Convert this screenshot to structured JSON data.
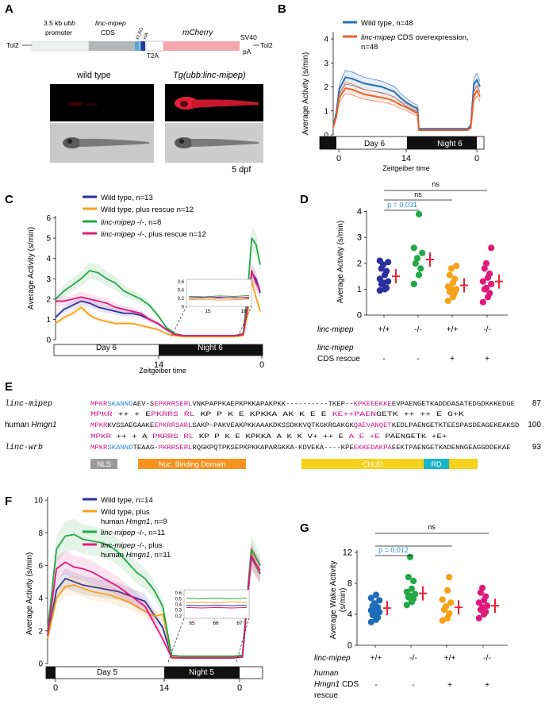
{
  "panels": {
    "A": {
      "letter": "A",
      "construct": {
        "tol2_left": "Tol2",
        "promoter_line1": "3.5 kb",
        "promoter_ubb": "ubb",
        "promoter_line2": "promoter",
        "cds_gene": "linc-mipep",
        "cds_label": "CDS",
        "flag": "FLAG",
        "ha": "HA",
        "t2a": "T2A",
        "mcherry": "mCherry",
        "sv40": "SV40",
        "pa": "pA",
        "tol2_right": "Tol2"
      },
      "fish": {
        "wild_type": "wild type",
        "tg": "Tg(ubb:linc-mipep)",
        "dpf": "5 dpf"
      }
    },
    "B": {
      "letter": "B",
      "ylabel": "Average Activity (s/min)",
      "xlabel": "Zeitgeiber time",
      "yticks": [
        "0",
        "1",
        "2",
        "3",
        "4"
      ],
      "xticks": [
        "0",
        "14",
        "0"
      ],
      "day_label": "Day 6",
      "night_label": "Night 6",
      "legend": [
        {
          "name": "Wild type, n=48",
          "color": "#2a6eb5"
        },
        {
          "name_italic": "linc-mipep",
          "name_rest": " CDS overexpression,",
          "name_line2": "n=48",
          "color": "#e8642c"
        }
      ]
    },
    "C": {
      "letter": "C",
      "ylabel": "Average Activity (s/min)",
      "xlabel": "Zeitgeiber time",
      "yticks": [
        "0",
        "1",
        "2",
        "3",
        "4",
        "5",
        "6"
      ],
      "xticks": [
        "14",
        "0"
      ],
      "day_label": "Day 6",
      "night_label": "Night 6",
      "inset_yticks": [
        "0",
        "0.2",
        "0.4",
        "0.6"
      ],
      "inset_xticks": [
        "15",
        "16"
      ],
      "legend": [
        {
          "name": "Wild type, n=13",
          "color": "#2b2f9e"
        },
        {
          "name": "Wild type, plus rescue  n=12",
          "color": "#f7a11a"
        },
        {
          "name_italic": "linc-mipep",
          "name_rest": " -/-, n=8",
          "color": "#22a846"
        },
        {
          "name_italic": "linc-mipep",
          "name_rest": " -/-, plus rescue n=12",
          "color": "#e0197d"
        }
      ]
    },
    "D": {
      "letter": "D",
      "ylabel": "Average Activity (s/min)",
      "yticks": [
        "0",
        "1",
        "2",
        "3",
        "4"
      ],
      "sig": [
        {
          "label": "ns"
        },
        {
          "label": "ns"
        },
        {
          "label": "p = 0.031"
        }
      ],
      "row1_label": "linc-mipep",
      "row1_values": [
        "+/+",
        "-/-",
        "+/+",
        "-/-"
      ],
      "row2_label_1": "linc-mipep",
      "row2_label_2": "CDS rescue",
      "row2_values": [
        "-",
        "-",
        "+",
        "+"
      ]
    },
    "E": {
      "letter": "E",
      "rows": [
        {
          "name": "linc-mipep",
          "seq": "MPKRSKANNDAEV-SEPKRRSERLVNKPAPPKAEPKPKKAPAKPKK----------TKEP--KPKEEEKKEEVPAENGETKADDDASATEDGDKKKEDGE",
          "end": "87"
        },
        {
          "name": "",
          "seq": "MPKR  ++ +    EPKRRS RL  KP P K E KPKKA AK K            E    E KE++PAENGETK ++  ++ E G+K",
          "end": ""
        },
        {
          "name": "human Hmgn1",
          "seq": "MPKRKVSSAEGAAKEEPKRRSARLSAKP-PAKVEAKPKKAAAKDKSSDKKVQTKGKRGAKGKQAEVANQETKEDLPAENGETKTEESPASDEAGEKEAKSD",
          "end": "100"
        },
        {
          "name": "",
          "seq": "MPKR  ++ +  A   PKRRS RL  KP  P K E KPKKA A K  K V+       ++ E A  E +E  PAENGETK +E+",
          "end": ""
        },
        {
          "name": "linc-wrb",
          "seq": "MPKRSKANNDTEAAG-PKRRSERLRQGKPQTPKSEPKPKKAPARGKKA-KDVEKA----KPEEKKEDAKPAEEKTPAENGETKADENNGEAGGDDEKAE",
          "end": "93"
        }
      ],
      "domains": {
        "nls": "NLS",
        "nbd": "Nuc. Binding Domain",
        "chud": "CHUD",
        "rd": "RD"
      }
    },
    "F": {
      "letter": "F",
      "ylabel": "Average Activity (s/min)",
      "yticks": [
        "0",
        "2",
        "4",
        "6",
        "8",
        "10"
      ],
      "xticks": [
        "0",
        "14",
        "0"
      ],
      "day_label": "Day 5",
      "night_label": "Night 5",
      "inset_yticks": [
        "0.2",
        "0.3",
        "0.4",
        "0.5",
        "0.6"
      ],
      "inset_xticks": [
        "65",
        "66",
        "67"
      ],
      "legend": [
        {
          "name": "Wild type, n=14",
          "color": "#2b2f9e"
        },
        {
          "name": "Wild type, plus",
          "name_line2_pre": "human ",
          "name_line2_italic": "Hmgn1",
          "name_line2_post": ", n=9",
          "color": "#f7a11a"
        },
        {
          "name_italic": "linc-mipep",
          "name_rest": " -/-, n=11",
          "color": "#22a846"
        },
        {
          "name_italic": "linc-mipep",
          "name_rest": " -/-, plus",
          "name_line2_pre": "human ",
          "name_line2_italic": "Hmgn1",
          "name_line2_post": ", n=11",
          "color": "#e0197d"
        }
      ]
    },
    "G": {
      "letter": "G",
      "ylabel_1": "Average Wake Activity",
      "ylabel_2": "(s/min)",
      "yticks": [
        "0",
        "4",
        "8",
        "12"
      ],
      "sig": [
        {
          "label": "ns"
        },
        {
          "label": "p = 0.012"
        }
      ],
      "row1_label": "linc-mipep",
      "row1_values": [
        "+/+",
        "-/-",
        "+/+",
        "-/-"
      ],
      "row2_label_1": "human",
      "row2_label_2": "Hmgn1",
      "row2_label_2b": " CDS",
      "row2_label_3": "rescue",
      "row2_values": [
        "-",
        "-",
        "+",
        "+"
      ]
    }
  },
  "colors": {
    "wt": "#2b2f9e",
    "wt_rescue": "#f7a11a",
    "mut": "#22a846",
    "mut_rescue": "#e0197d",
    "wt_blue": "#2a6eb5",
    "oe_orange": "#e8642c",
    "mean": "#e8233a",
    "seq_mag": "#d4148c",
    "seq_blue": "#2a8ad4"
  },
  "chart_data": [
    {
      "panel": "B",
      "type": "line",
      "xlabel": "Zeitgeiber time",
      "ylabel": "Average Activity (s/min)",
      "ylim": [
        0,
        4.3
      ],
      "x": [
        0,
        0.5,
        1,
        2,
        3,
        4,
        5,
        6,
        7,
        8,
        9,
        10,
        11,
        12,
        13,
        13.8,
        14,
        15,
        16,
        17,
        18,
        19,
        20,
        21,
        22,
        22.5,
        23,
        23.5,
        24
      ],
      "series": [
        {
          "name": "Wild type, n=48",
          "values": [
            0.35,
            0.9,
            1.9,
            2.4,
            2.35,
            2.25,
            2.15,
            2.1,
            2.05,
            2.0,
            1.9,
            1.8,
            1.55,
            1.35,
            1.2,
            1.1,
            0.25,
            0.25,
            0.25,
            0.25,
            0.25,
            0.25,
            0.25,
            0.25,
            0.25,
            0.4,
            2.1,
            2.3,
            2.0
          ]
        },
        {
          "name": "linc-mipep CDS overexpression, n=48",
          "values": [
            0.3,
            0.75,
            1.55,
            1.95,
            1.9,
            1.8,
            1.7,
            1.65,
            1.6,
            1.55,
            1.5,
            1.4,
            1.25,
            1.15,
            1.0,
            0.9,
            0.2,
            0.2,
            0.2,
            0.2,
            0.2,
            0.2,
            0.2,
            0.2,
            0.2,
            0.3,
            1.6,
            1.85,
            1.6
          ]
        }
      ]
    },
    {
      "panel": "C",
      "type": "line",
      "xlabel": "Zeitgeiber time",
      "ylabel": "Average Activity (s/min)",
      "ylim": [
        0,
        6
      ],
      "x": [
        0,
        1,
        2,
        3,
        4,
        5,
        6,
        7,
        8,
        9,
        10,
        11,
        12,
        13,
        14,
        15,
        16,
        17,
        18,
        19,
        20,
        21,
        22,
        22.5,
        23,
        23.5,
        24
      ],
      "series": [
        {
          "name": "Wild type, n=13",
          "values": [
            1.1,
            1.5,
            1.7,
            1.9,
            1.8,
            1.6,
            1.5,
            1.4,
            1.3,
            1.3,
            1.2,
            1.0,
            0.8,
            0.5,
            0.25,
            0.2,
            0.2,
            0.2,
            0.2,
            0.2,
            0.2,
            0.2,
            0.25,
            1.5,
            3.3,
            3.0,
            2.3
          ]
        },
        {
          "name": "Wild type, plus rescue  n=12",
          "values": [
            0.8,
            1.1,
            1.3,
            1.6,
            1.2,
            1.0,
            0.9,
            0.8,
            0.8,
            0.8,
            0.7,
            0.6,
            0.5,
            0.3,
            0.2,
            0.15,
            0.15,
            0.15,
            0.15,
            0.15,
            0.15,
            0.15,
            0.2,
            1.2,
            2.9,
            2.1,
            1.4
          ]
        },
        {
          "name": "linc-mipep -/-, n=8",
          "values": [
            2.0,
            2.4,
            2.7,
            3.0,
            3.4,
            3.3,
            3.0,
            2.8,
            2.4,
            2.2,
            2.0,
            1.7,
            1.2,
            0.6,
            0.3,
            0.2,
            0.2,
            0.2,
            0.2,
            0.2,
            0.2,
            0.2,
            0.3,
            2.2,
            5.0,
            4.7,
            3.7
          ]
        },
        {
          "name": "linc-mipep -/-, plus rescue n=12",
          "values": [
            1.9,
            1.9,
            2.0,
            2.1,
            2.0,
            1.9,
            1.8,
            1.6,
            1.5,
            1.4,
            1.3,
            1.0,
            0.8,
            0.5,
            0.25,
            0.2,
            0.2,
            0.2,
            0.2,
            0.2,
            0.2,
            0.2,
            0.25,
            1.6,
            3.4,
            2.8,
            2.4
          ]
        }
      ]
    },
    {
      "panel": "D",
      "type": "scatter",
      "ylabel": "Average Activity (s/min)",
      "ylim": [
        0,
        4
      ],
      "groups": [
        {
          "genotype": "+/+",
          "rescue": "-",
          "color": "#2b2f9e",
          "mean": 1.5,
          "values": [
            0.95,
            1.05,
            1.2,
            1.3,
            1.4,
            1.55,
            1.7,
            1.8,
            1.95,
            2.05,
            2.1,
            1.0,
            1.25
          ]
        },
        {
          "genotype": "-/-",
          "rescue": "-",
          "color": "#22a846",
          "mean": 2.15,
          "values": [
            1.2,
            1.55,
            1.8,
            2.0,
            2.2,
            2.4,
            2.6,
            3.9
          ]
        },
        {
          "genotype": "+/+",
          "rescue": "+",
          "color": "#f7a11a",
          "mean": 1.15,
          "values": [
            0.55,
            0.7,
            0.85,
            0.9,
            1.0,
            1.0,
            1.1,
            1.25,
            1.4,
            1.55,
            1.8,
            1.9
          ]
        },
        {
          "genotype": "-/-",
          "rescue": "+",
          "color": "#e0197d",
          "mean": 1.3,
          "values": [
            0.5,
            0.7,
            0.85,
            1.0,
            1.05,
            1.2,
            1.3,
            1.45,
            1.6,
            1.8,
            2.0,
            2.6
          ]
        }
      ]
    },
    {
      "panel": "F",
      "type": "line",
      "ylabel": "Average Activity (s/min)",
      "ylim": [
        0,
        10
      ],
      "x": [
        0,
        1,
        2,
        3,
        4,
        5,
        6,
        7,
        8,
        9,
        10,
        11,
        12,
        13,
        14,
        15,
        16,
        17,
        18,
        19,
        20,
        21,
        22,
        22.5,
        23,
        23.5,
        24
      ],
      "series": [
        {
          "name": "Wild type, n=14",
          "values": [
            1.5,
            4.5,
            5.2,
            5.0,
            4.8,
            4.7,
            4.6,
            4.5,
            4.4,
            4.2,
            4.0,
            3.8,
            3.0,
            2.2,
            0.4,
            0.35,
            0.35,
            0.35,
            0.35,
            0.35,
            0.35,
            0.35,
            0.4,
            3.5,
            6.5,
            6.0,
            5.5
          ]
        },
        {
          "name": "Wild type, plus human Hmgn1, n=9",
          "values": [
            1.5,
            4.0,
            4.7,
            4.8,
            4.6,
            4.4,
            4.3,
            4.2,
            4.0,
            3.8,
            3.5,
            3.2,
            2.9,
            3.0,
            0.4,
            0.4,
            0.4,
            0.4,
            0.4,
            0.4,
            0.4,
            0.4,
            0.45,
            3.5,
            6.8,
            6.1,
            5.6
          ]
        },
        {
          "name": "linc-mipep -/-, n=11",
          "values": [
            2.0,
            7.0,
            7.8,
            7.9,
            7.6,
            7.5,
            7.4,
            7.2,
            6.8,
            6.2,
            5.6,
            5.2,
            4.5,
            3.5,
            0.5,
            0.45,
            0.45,
            0.45,
            0.45,
            0.45,
            0.45,
            0.45,
            0.5,
            4.0,
            7.0,
            6.5,
            6.0
          ]
        },
        {
          "name": "linc-mipep -/-, plus human Hmgn1, n=11",
          "values": [
            1.7,
            5.8,
            6.2,
            5.9,
            5.8,
            5.6,
            5.3,
            5.0,
            4.7,
            4.3,
            3.9,
            3.5,
            2.5,
            1.5,
            0.35,
            0.35,
            0.35,
            0.35,
            0.35,
            0.35,
            0.35,
            0.35,
            0.4,
            3.6,
            6.6,
            6.1,
            5.7
          ]
        }
      ]
    },
    {
      "panel": "G",
      "type": "scatter",
      "ylabel": "Average Wake Activity (s/min)",
      "ylim": [
        0,
        12
      ],
      "groups": [
        {
          "genotype": "+/+",
          "rescue": "-",
          "color": "#1f6db8",
          "mean": 4.8,
          "values": [
            3.0,
            3.3,
            3.6,
            3.9,
            4.1,
            4.3,
            4.5,
            4.7,
            4.9,
            5.1,
            5.4,
            5.8,
            6.1,
            6.5
          ]
        },
        {
          "genotype": "-/-",
          "rescue": "-",
          "color": "#22a846",
          "mean": 6.7,
          "values": [
            5.2,
            5.6,
            6.0,
            6.2,
            6.4,
            6.6,
            6.9,
            7.3,
            8.3,
            8.8,
            11.4
          ]
        },
        {
          "genotype": "+/+",
          "rescue": "+",
          "color": "#f7a11a",
          "mean": 4.9,
          "values": [
            3.2,
            3.5,
            4.1,
            4.6,
            5.0,
            5.5,
            5.9,
            7.1,
            8.8
          ]
        },
        {
          "genotype": "-/-",
          "rescue": "+",
          "color": "#e0197d",
          "mean": 5.1,
          "values": [
            3.5,
            4.0,
            4.3,
            4.6,
            4.9,
            5.1,
            5.5,
            5.8,
            6.3,
            6.8,
            7.4
          ]
        }
      ]
    }
  ]
}
